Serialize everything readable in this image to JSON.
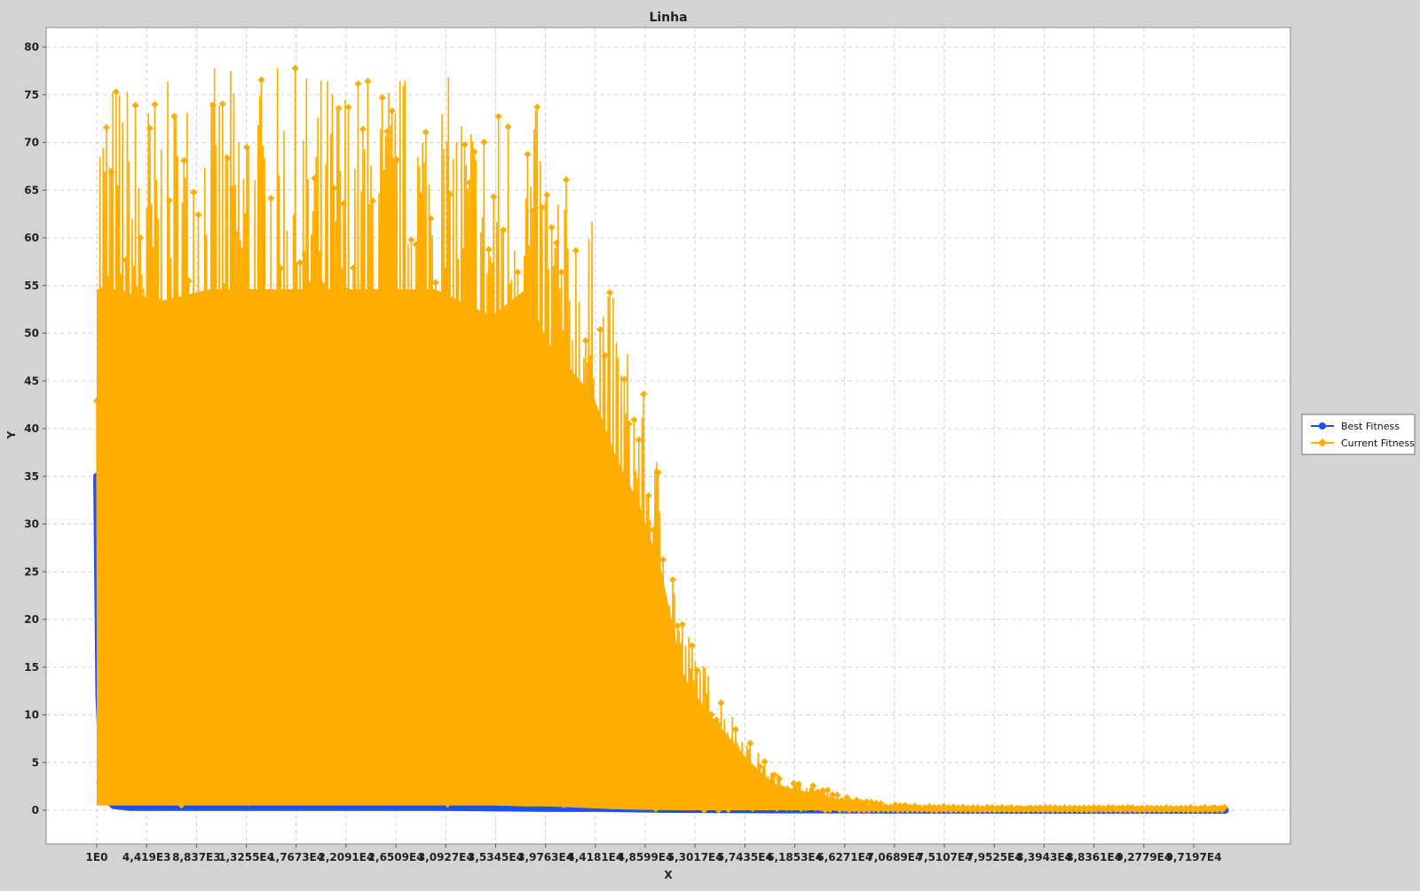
{
  "chart_data": {
    "type": "line",
    "title": "Linha",
    "xlabel": "X",
    "ylabel": "Y",
    "xlim": [
      1,
      100000
    ],
    "ylim": [
      0,
      80
    ],
    "grid": true,
    "legend_position": "right",
    "x_tick_labels": [
      "1E0",
      "4,419E3",
      "8,837E3",
      "1,3255E4",
      "1,7673E4",
      "2,2091E4",
      "2,6509E4",
      "3,0927E4",
      "3,5345E4",
      "3,9763E4",
      "4,4181E4",
      "4,8599E4",
      "5,3017E4",
      "5,7435E4",
      "6,1853E4",
      "6,6271E4",
      "7,0689E4",
      "7,5107E4",
      "7,9525E4",
      "8,3943E4",
      "8,8361E4",
      "9,2779E4",
      "9,7197E4"
    ],
    "x_tick_values": [
      1,
      4419,
      8837,
      13255,
      17673,
      22091,
      26509,
      30927,
      35345,
      39763,
      44181,
      48599,
      53017,
      57435,
      61853,
      66271,
      70689,
      75107,
      79525,
      83943,
      88361,
      92779,
      97197
    ],
    "y_ticks": [
      0,
      5,
      10,
      15,
      20,
      25,
      30,
      35,
      40,
      45,
      50,
      55,
      60,
      65,
      70,
      75,
      80
    ],
    "series": [
      {
        "name": "Best Fitness",
        "color": "#1f4ff0",
        "marker": "circle",
        "x": [
          1,
          200,
          600,
          1500,
          3000,
          6000,
          10000,
          20000,
          30000,
          40000,
          45000,
          50000,
          60000,
          70000,
          80000,
          90000,
          100000
        ],
        "values": [
          35,
          12,
          1.5,
          0.5,
          0.3,
          0.3,
          0.3,
          0.3,
          0.3,
          0.2,
          0.2,
          0.1,
          0.05,
          0.02,
          0.01,
          0.01,
          0.01
        ]
      },
      {
        "name": "Current Fitness",
        "color": "#ffae00",
        "marker": "diamond",
        "envelope_x": [
          1,
          2000,
          5000,
          10000,
          15000,
          20000,
          25000,
          30000,
          35000,
          38000,
          40000,
          42000,
          44000,
          46000,
          48000,
          50000,
          52000,
          54000,
          56000,
          58000,
          60000,
          62000,
          64000,
          66000,
          68000,
          70000,
          75000,
          80000,
          90000,
          100000
        ],
        "envelope_max": [
          78,
          78,
          76,
          78,
          78,
          78,
          78,
          78,
          74,
          78,
          70,
          66,
          62,
          53,
          46,
          36,
          20,
          15,
          11,
          7,
          4,
          3,
          2.5,
          1.5,
          1,
          0.6,
          0.4,
          0.3,
          0.3,
          0.3
        ],
        "envelope_min": [
          0.5,
          0.5,
          0.5,
          0.5,
          0.5,
          0.5,
          0.5,
          0.5,
          0.5,
          0.4,
          0.4,
          0.3,
          0.2,
          0.1,
          0.05,
          0.02,
          0,
          0,
          0,
          0,
          0,
          0,
          0,
          0,
          0,
          0,
          0,
          0,
          0,
          0
        ]
      }
    ]
  }
}
